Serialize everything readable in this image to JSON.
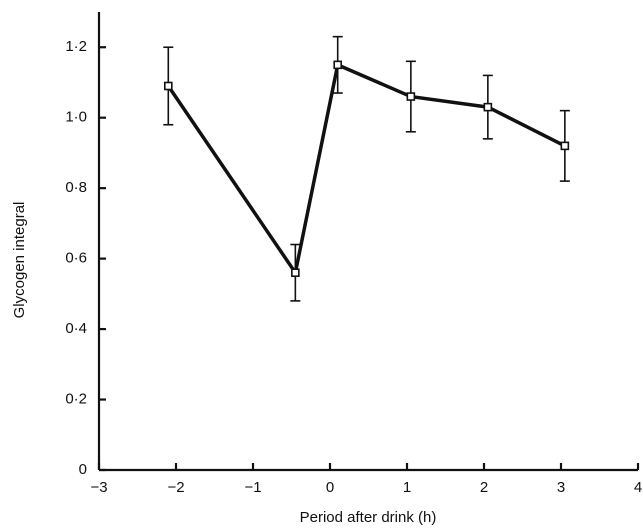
{
  "chart_data": {
    "type": "line",
    "xlabel": "Period after drink (h)",
    "ylabel": "Glycogen integral",
    "x": [
      -2.1,
      -0.45,
      0.1,
      1.05,
      2.05,
      3.05
    ],
    "series": [
      {
        "color": "#111111",
        "values": [
          1.09,
          0.56,
          1.15,
          1.06,
          1.03,
          0.92
        ],
        "errors": [
          0.11,
          0.08,
          0.08,
          0.1,
          0.09,
          0.1
        ]
      }
    ],
    "xlim": [
      -3,
      4
    ],
    "xticks": [
      {
        "value": -3,
        "label": "−3"
      },
      {
        "value": -2,
        "label": "−2"
      },
      {
        "value": -1,
        "label": "−1"
      },
      0,
      1,
      2,
      3,
      4
    ],
    "ylim": [
      0,
      1.3
    ],
    "yticks": [
      0,
      {
        "value": 0.2,
        "label": "0·2"
      },
      {
        "value": 0.4,
        "label": "0·4"
      },
      {
        "value": 0.6,
        "label": "0·6"
      },
      {
        "value": 0.8,
        "label": "0·8"
      },
      {
        "value": 1.0,
        "label": "1·0"
      },
      {
        "value": 1.2,
        "label": "1·2"
      }
    ]
  }
}
